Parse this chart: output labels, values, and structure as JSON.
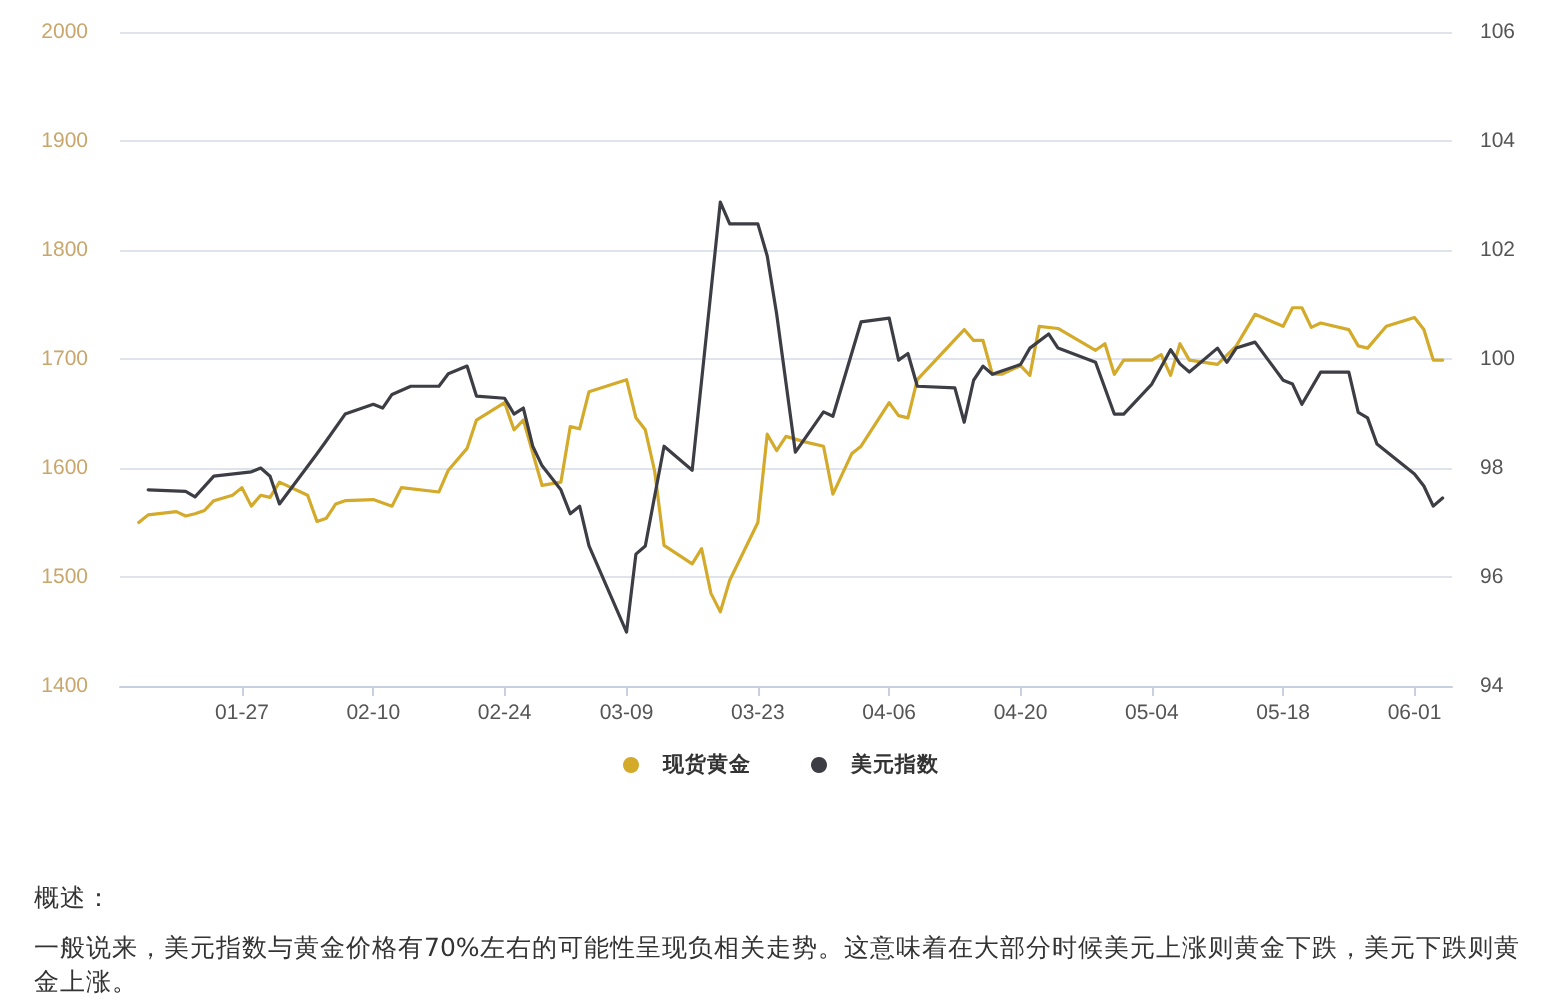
{
  "chart_data": {
    "type": "line",
    "xlim": [
      "--01-14",
      "--06-05"
    ],
    "xticks": [
      {
        "value": "--01-27",
        "label": "01-27"
      },
      {
        "value": "--02-10",
        "label": "02-10"
      },
      {
        "value": "--02-24",
        "label": "02-24"
      },
      {
        "value": "--03-09",
        "label": "03-09"
      },
      {
        "value": "--03-23",
        "label": "03-23"
      },
      {
        "value": "--04-06",
        "label": "04-06"
      },
      {
        "value": "--04-20",
        "label": "04-20"
      },
      {
        "value": "--05-04",
        "label": "05-04"
      },
      {
        "value": "--05-18",
        "label": "05-18"
      },
      {
        "value": "--06-01",
        "label": "06-01"
      }
    ],
    "ylim": [
      1400,
      2000
    ],
    "yticks": [
      1400,
      1500,
      1600,
      1700,
      1800,
      1900,
      2000
    ],
    "y2lim": [
      94,
      106
    ],
    "y2ticks": [
      94,
      96,
      98,
      100,
      102,
      104,
      106
    ],
    "grid": "y",
    "legend": "bottom",
    "marker": "none",
    "line_style": "solid",
    "series": [
      {
        "name": "现货黄金",
        "color": "#d4aa2a",
        "x": [
          "--01-16",
          "--01-17",
          "--01-20",
          "--01-21",
          "--01-22",
          "--01-23",
          "--01-24",
          "--01-26",
          "--01-27",
          "--01-28",
          "--01-29",
          "--01-30",
          "--01-31",
          "--02-03",
          "--02-04",
          "--02-05",
          "--02-06",
          "--02-07",
          "--02-10",
          "--02-12",
          "--02-13",
          "--02-17",
          "--02-18",
          "--02-20",
          "--02-21",
          "--02-24",
          "--02-25",
          "--02-26",
          "--02-28",
          "--03-02",
          "--03-03",
          "--03-04",
          "--03-05",
          "--03-09",
          "--03-10",
          "--03-11",
          "--03-12",
          "--03-13",
          "--03-16",
          "--03-17",
          "--03-18",
          "--03-19",
          "--03-20",
          "--03-23",
          "--03-24",
          "--03-25",
          "--03-26",
          "--03-28",
          "--03-30",
          "--03-31",
          "--04-02",
          "--04-03",
          "--04-06",
          "--04-07",
          "--04-08",
          "--04-09",
          "--04-14",
          "--04-15",
          "--04-16",
          "--04-17",
          "--04-18",
          "--04-20",
          "--04-21",
          "--04-22",
          "--04-24",
          "--04-28",
          "--04-29",
          "--04-30",
          "--05-01",
          "--05-04",
          "--05-05",
          "--05-06",
          "--05-07",
          "--05-08",
          "--05-11",
          "--05-13",
          "--05-15",
          "--05-18",
          "--05-19",
          "--05-20",
          "--05-21",
          "--05-22",
          "--05-25",
          "--05-26",
          "--05-27",
          "--05-29",
          "--06-01",
          "--06-02",
          "--06-03",
          "--06-04"
        ],
        "values": [
          1550,
          1557,
          1560,
          1556,
          1558,
          1561,
          1570,
          1575,
          1582,
          1565,
          1575,
          1573,
          1587,
          1575,
          1551,
          1554,
          1567,
          1570,
          1571,
          1565,
          1582,
          1578,
          1598,
          1618,
          1644,
          1660,
          1635,
          1644,
          1584,
          1587,
          1638,
          1636,
          1670,
          1681,
          1646,
          1635,
          1597,
          1529,
          1512,
          1526,
          1485,
          1468,
          1497,
          1550,
          1631,
          1616,
          1629,
          1624,
          1620,
          1576,
          1613,
          1620,
          1660,
          1648,
          1646,
          1681,
          1727,
          1717,
          1717,
          1686,
          1686,
          1694,
          1685,
          1730,
          1728,
          1708,
          1714,
          1686,
          1699,
          1699,
          1704,
          1685,
          1714,
          1699,
          1695,
          1712,
          1741,
          1730,
          1747,
          1747,
          1729,
          1733,
          1727,
          1712,
          1710,
          1730,
          1738,
          1727,
          1699,
          1699
        ]
      },
      {
        "name": "美元指数",
        "color": "#3d3d45",
        "axis": "y2",
        "x": [
          "--01-17",
          "--01-21",
          "--01-22",
          "--01-24",
          "--01-28",
          "--01-29",
          "--01-30",
          "--01-31",
          "--02-04",
          "--02-05",
          "--02-07",
          "--02-10",
          "--02-11",
          "--02-12",
          "--02-14",
          "--02-17",
          "--02-18",
          "--02-20",
          "--02-21",
          "--02-24",
          "--02-25",
          "--02-26",
          "--02-27",
          "--02-28",
          "--03-02",
          "--03-03",
          "--03-04",
          "--03-05",
          "--03-09",
          "--03-10",
          "--03-11",
          "--03-13",
          "--03-16",
          "--03-19",
          "--03-20",
          "--03-23",
          "--03-24",
          "--03-25",
          "--03-27",
          "--03-30",
          "--03-31",
          "--04-03",
          "--04-06",
          "--04-07",
          "--04-08",
          "--04-09",
          "--04-13",
          "--04-14",
          "--04-15",
          "--04-16",
          "--04-17",
          "--04-20",
          "--04-21",
          "--04-23",
          "--04-24",
          "--04-28",
          "--04-30",
          "--05-01",
          "--05-04",
          "--05-06",
          "--05-07",
          "--05-08",
          "--05-11",
          "--05-12",
          "--05-13",
          "--05-15",
          "--05-18",
          "--05-19",
          "--05-20",
          "--05-22",
          "--05-25",
          "--05-26",
          "--05-27",
          "--05-28",
          "--06-01",
          "--06-02",
          "--06-03",
          "--06-04"
        ],
        "values": [
          97.6,
          97.57,
          97.47,
          97.85,
          97.93,
          98.0,
          97.85,
          97.34,
          98.26,
          98.5,
          98.99,
          99.17,
          99.1,
          99.35,
          99.5,
          99.5,
          99.73,
          99.87,
          99.32,
          99.28,
          98.99,
          99.1,
          98.4,
          98.04,
          97.6,
          97.16,
          97.3,
          96.57,
          94.99,
          96.42,
          96.57,
          98.4,
          97.96,
          102.88,
          102.48,
          102.48,
          101.89,
          100.83,
          98.29,
          99.03,
          98.95,
          100.68,
          100.75,
          99.98,
          100.1,
          99.5,
          99.47,
          98.84,
          99.61,
          99.87,
          99.72,
          99.9,
          100.2,
          100.46,
          100.2,
          99.94,
          98.99,
          98.99,
          99.54,
          100.17,
          99.91,
          99.76,
          100.2,
          99.94,
          100.2,
          100.31,
          99.61,
          99.54,
          99.17,
          99.76,
          99.76,
          99.02,
          98.92,
          98.44,
          97.89,
          97.67,
          97.3,
          97.45
        ]
      }
    ],
    "annotations": [
      "概述：",
      "一般说来，美元指数与黄金价格有70%左右的可能性呈现负相关走势。这意味着在大部分时候美元上涨则黄金下跌，美元下跌则黄金上涨。"
    ]
  }
}
